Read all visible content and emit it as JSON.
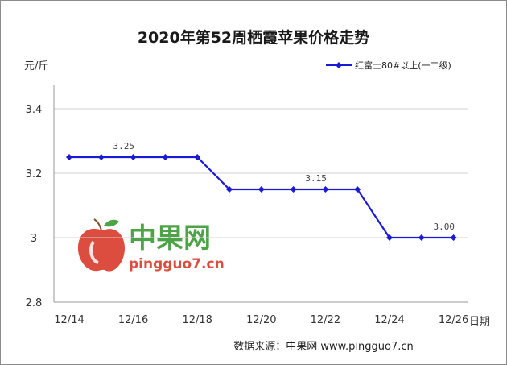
{
  "chart_data": {
    "type": "line",
    "title": "2020年第52周栖霞苹果价格走势",
    "ylabel": "元/斤",
    "xlabel": "日期",
    "ylim": [
      2.8,
      3.4
    ],
    "yticks": [
      "2.8",
      "3",
      "3.2",
      "3.4"
    ],
    "xticks": [
      "12/14",
      "12/16",
      "12/18",
      "12/20",
      "12/22",
      "12/24",
      "12/26"
    ],
    "grid": "horizontal",
    "legend_position": "top-right",
    "series": [
      {
        "name": "红富士80#以上(一二级)",
        "color": "#1a1ad4",
        "x": [
          "12/14",
          "12/15",
          "12/16",
          "12/17",
          "12/18",
          "12/19",
          "12/20",
          "12/21",
          "12/22",
          "12/23",
          "12/24",
          "12/25",
          "12/26"
        ],
        "values": [
          3.25,
          3.25,
          3.25,
          3.25,
          3.25,
          3.15,
          3.15,
          3.15,
          3.15,
          3.15,
          3.0,
          3.0,
          3.0
        ]
      }
    ],
    "annotations": [
      {
        "text": "3.25",
        "x": "12/15",
        "y": 3.25
      },
      {
        "text": "3.15",
        "x": "12/21",
        "y": 3.15
      },
      {
        "text": "3.00",
        "x": "12/25",
        "y": 3.0
      }
    ]
  },
  "watermark": {
    "brand_cn": "中果网",
    "brand_en": "pingguo7.cn"
  },
  "source": "数据来源：中果网 www.pingguo7.cn"
}
